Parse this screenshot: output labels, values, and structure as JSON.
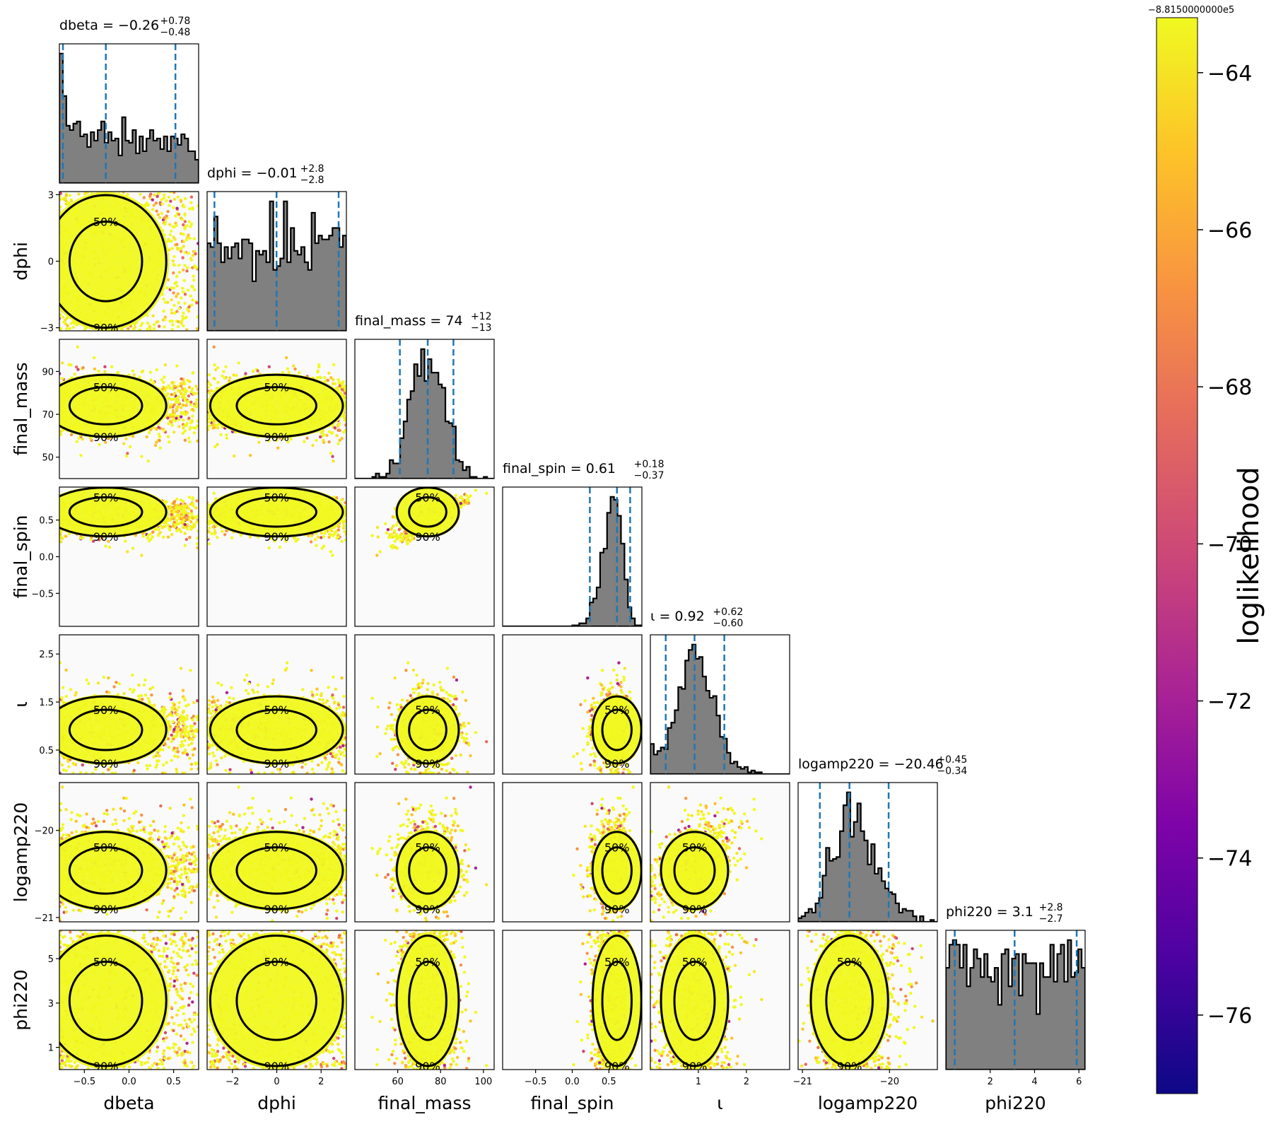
{
  "chart_data": {
    "type": "corner",
    "parameters": [
      {
        "name": "dbeta",
        "label": "dbeta",
        "range": [
          -0.78,
          0.78
        ],
        "ticks": [
          -0.5,
          0.0,
          0.5
        ],
        "tick_labels": [
          "−0.5",
          "0.0",
          "0.5"
        ],
        "title_main": "dbeta = −0.26",
        "title_sup": "+0.78",
        "title_sub": "−0.48",
        "median": -0.26,
        "lower": -0.74,
        "upper": 0.52
      },
      {
        "name": "dphi",
        "label": "dphi",
        "range": [
          -3.14,
          3.14
        ],
        "ticks": [
          -3,
          0,
          3
        ],
        "tick_labels": [
          "−3",
          "0",
          "3"
        ],
        "x_ticks": [
          -2,
          0,
          2
        ],
        "x_tick_labels": [
          "−2",
          "0",
          "2"
        ],
        "title_main": "dphi = −0.01",
        "title_sup": "+2.8",
        "title_sub": "−2.8",
        "median": -0.01,
        "lower": -2.81,
        "upper": 2.79
      },
      {
        "name": "final_mass",
        "label": "final_mass",
        "range": [
          40,
          105
        ],
        "ticks": [
          50,
          70,
          90
        ],
        "tick_labels": [
          "50",
          "70",
          "90"
        ],
        "x_ticks": [
          60,
          80,
          100
        ],
        "x_tick_labels": [
          "60",
          "80",
          "100"
        ],
        "title_main": "final_mass = 74",
        "title_sup": "+12",
        "title_sub": "−13",
        "median": 74,
        "lower": 61,
        "upper": 86
      },
      {
        "name": "final_spin",
        "label": "final_spin",
        "range": [
          -0.95,
          0.95
        ],
        "ticks": [
          -0.5,
          0.0,
          0.5
        ],
        "tick_labels": [
          "−0.5",
          "0.0",
          "0.5"
        ],
        "title_main": "final_spin = 0.61",
        "title_sup": "+0.18",
        "title_sub": "−0.37",
        "median": 0.61,
        "lower": 0.24,
        "upper": 0.79
      },
      {
        "name": "iota",
        "label": "ι",
        "range": [
          0,
          2.9
        ],
        "ticks": [
          0.5,
          1.5,
          2.5
        ],
        "tick_labels": [
          "0.5",
          "1.5",
          "2.5"
        ],
        "x_ticks": [
          1,
          2
        ],
        "x_tick_labels": [
          "1",
          "2"
        ],
        "title_main": "ι = 0.92",
        "title_sup": "+0.62",
        "title_sub": "−0.60",
        "median": 0.92,
        "lower": 0.32,
        "upper": 1.54
      },
      {
        "name": "logamp220",
        "label": "logamp220",
        "range": [
          -21.05,
          -19.45
        ],
        "ticks": [
          -20,
          -21
        ],
        "tick_labels": [
          "−20",
          "−21"
        ],
        "x_ticks": [
          -21,
          -20
        ],
        "x_tick_labels": [
          "−21",
          "−20"
        ],
        "title_main": "logamp220 = −20.46",
        "title_sup": "+0.45",
        "title_sub": "−0.34",
        "median": -20.46,
        "lower": -20.8,
        "upper": -20.01
      },
      {
        "name": "phi220",
        "label": "phi220",
        "range": [
          0,
          6.28
        ],
        "ticks": [
          1,
          3,
          5
        ],
        "tick_labels": [
          "1",
          "3",
          "5"
        ],
        "x_ticks": [
          2,
          4,
          6
        ],
        "x_tick_labels": [
          "2",
          "4",
          "6"
        ],
        "title_main": "phi220 = 3.1",
        "title_sup": "+2.8",
        "title_sub": "−2.7",
        "median": 3.1,
        "lower": 0.4,
        "upper": 5.9
      }
    ],
    "contour_levels": [
      "50%",
      "90%"
    ],
    "colorbar": {
      "label": "loglikelihood",
      "offset_text": "−8.8150000000e5",
      "range": [
        -77,
        -63.3
      ],
      "ticks": [
        -64,
        -66,
        -68,
        -70,
        -72,
        -74,
        -76
      ],
      "tick_labels": [
        "−64",
        "−66",
        "−68",
        "−70",
        "−72",
        "−74",
        "−76"
      ],
      "colormap": "plasma"
    },
    "histogram_fill": "#808080",
    "quantile_line_color": "#1f77b4"
  }
}
